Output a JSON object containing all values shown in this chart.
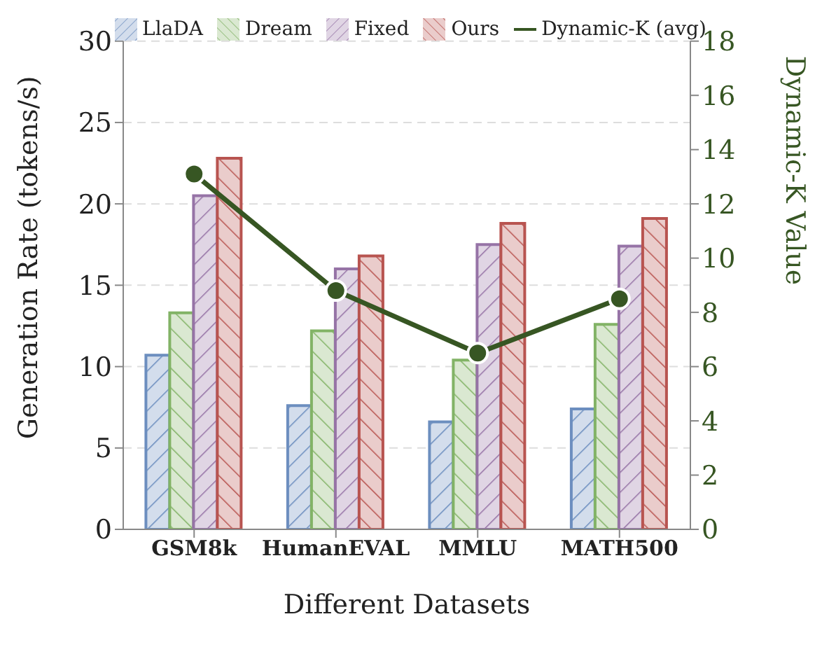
{
  "chart_data": {
    "type": "bar",
    "xlabel": "Different Datasets",
    "ylabel": "Generation Rate (tokens/s)",
    "y2label": "Dynamic-K Value",
    "categories": [
      "GSM8k",
      "HumanEVAL",
      "MMLU",
      "MATH500"
    ],
    "series": [
      {
        "name": "LlaDA",
        "color": "#6c8ebf",
        "values": [
          10.7,
          7.6,
          6.6,
          7.4
        ]
      },
      {
        "name": "Dream",
        "color": "#82b366",
        "values": [
          13.3,
          12.2,
          10.4,
          12.6
        ]
      },
      {
        "name": "Fixed",
        "color": "#9673a6",
        "values": [
          20.5,
          16.0,
          17.5,
          17.4
        ]
      },
      {
        "name": "Ours",
        "color": "#b85450",
        "values": [
          22.8,
          16.8,
          18.8,
          19.1
        ]
      },
      {
        "name": "Dynamic-K (avg)",
        "type": "line",
        "axis": "y2",
        "color": "#375623",
        "marker": "circle",
        "values": [
          13.1,
          8.8,
          6.5,
          8.5
        ]
      }
    ],
    "ylim": [
      0,
      30
    ],
    "yticks": [
      0,
      5,
      10,
      15,
      20,
      25,
      30
    ],
    "y2lim": [
      0,
      18
    ],
    "y2ticks": [
      0,
      2,
      4,
      6,
      8,
      10,
      12,
      14,
      16,
      18
    ],
    "grid": "y",
    "legend": "top"
  }
}
